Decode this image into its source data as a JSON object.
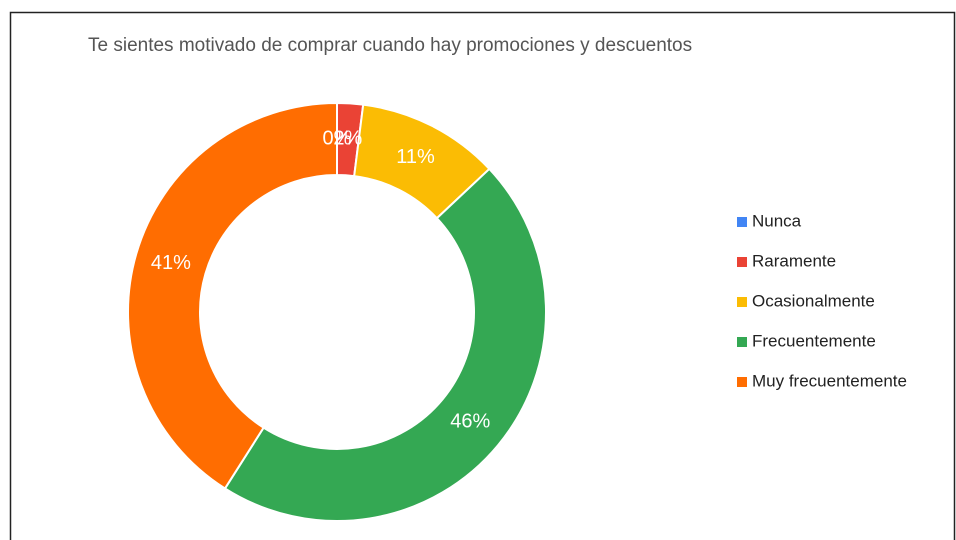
{
  "chart_data": {
    "type": "donut",
    "title": "Te sientes motivado de comprar cuando hay promociones y descuentos",
    "categories": [
      "Nunca",
      "Raramente",
      "Ocasionalmente",
      "Frecuentemente",
      "Muy frecuentemente"
    ],
    "values": [
      0,
      2,
      11,
      46,
      41
    ],
    "value_labels": [
      "0%",
      "2%",
      "11%",
      "46%",
      "41%"
    ],
    "colors": [
      "#4285f4",
      "#ea4335",
      "#fbbc04",
      "#34a853",
      "#ff6d01"
    ],
    "legend": "right"
  }
}
